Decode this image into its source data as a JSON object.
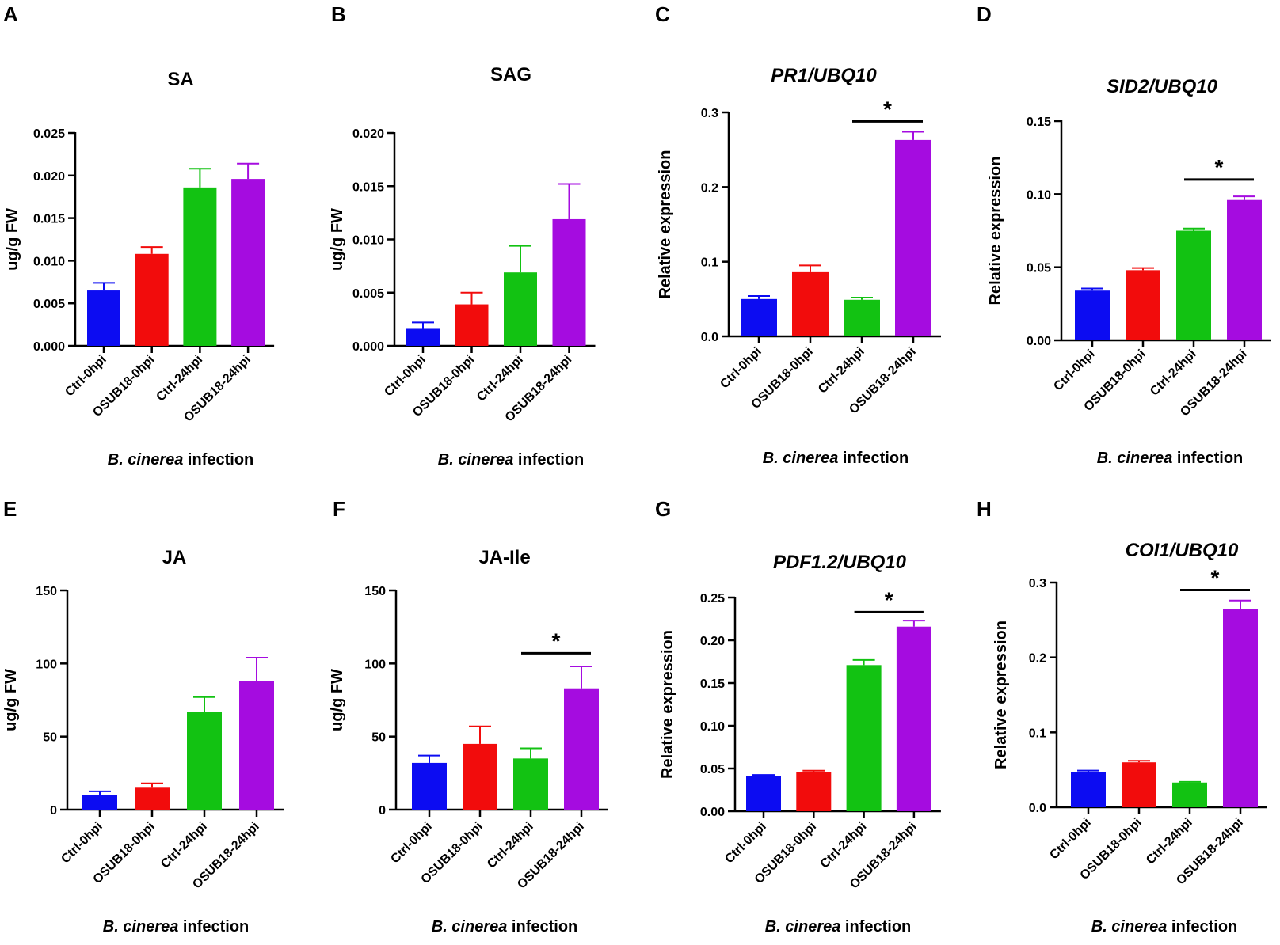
{
  "colors": {
    "ctrl0": "#0c0cf2",
    "osub0": "#f20c0c",
    "ctrl24": "#12c212",
    "osub24": "#a50ce0"
  },
  "chart_data": [
    {
      "panel": "A",
      "type": "bar",
      "title": "SA",
      "title_italic": false,
      "ylabel": "ug/g FW",
      "xlabel_italic": "B. cinerea",
      "xlabel_rest": " infection",
      "categories": [
        "Ctrl-0hpi",
        "OSUB18-0hpi",
        "Ctrl-24hpi",
        "OSUB18-24hpi"
      ],
      "values": [
        0.0065,
        0.0108,
        0.0186,
        0.0196
      ],
      "errors": [
        0.0009,
        0.0008,
        0.0022,
        0.0018
      ],
      "ylim": [
        0,
        0.025
      ],
      "yticks": [
        "0.000",
        "0.005",
        "0.010",
        "0.015",
        "0.020",
        "0.025"
      ],
      "significance": null
    },
    {
      "panel": "B",
      "type": "bar",
      "title": "SAG",
      "title_italic": false,
      "ylabel": "ug/g FW",
      "xlabel_italic": "B. cinerea",
      "xlabel_rest": " infection",
      "categories": [
        "Ctrl-0hpi",
        "OSUB18-0hpi",
        "Ctrl-24hpi",
        "OSUB18-24hpi"
      ],
      "values": [
        0.0016,
        0.0039,
        0.0069,
        0.0119
      ],
      "errors": [
        0.0006,
        0.0011,
        0.0025,
        0.0033
      ],
      "ylim": [
        0,
        0.02
      ],
      "yticks": [
        "0.000",
        "0.005",
        "0.010",
        "0.015",
        "0.020"
      ],
      "significance": null
    },
    {
      "panel": "C",
      "type": "bar",
      "title": "PR1/UBQ10",
      "title_italic": true,
      "ylabel": "Relative expression",
      "xlabel_italic": "B. cinerea",
      "xlabel_rest": " infection",
      "categories": [
        "Ctrl-0hpi",
        "OSUB18-0hpi",
        "Ctrl-24hpi",
        "OSUB18-24hpi"
      ],
      "values": [
        0.05,
        0.086,
        0.049,
        0.263
      ],
      "errors": [
        0.004,
        0.009,
        0.003,
        0.011
      ],
      "ylim": [
        0,
        0.3
      ],
      "yticks": [
        "0.0",
        "0.1",
        "0.2",
        "0.3"
      ],
      "significance": {
        "from": 2,
        "to": 3,
        "label": "*",
        "y": 0.288
      }
    },
    {
      "panel": "D",
      "type": "bar",
      "title": "SID2/UBQ10",
      "title_italic": true,
      "ylabel": "Relative expression",
      "xlabel_italic": "B. cinerea",
      "xlabel_rest": " infection",
      "categories": [
        "Ctrl-0hpi",
        "OSUB18-0hpi",
        "Ctrl-24hpi",
        "OSUB18-24hpi"
      ],
      "values": [
        0.034,
        0.048,
        0.075,
        0.096
      ],
      "errors": [
        0.0015,
        0.0015,
        0.0015,
        0.0025
      ],
      "ylim": [
        0,
        0.15
      ],
      "yticks": [
        "0.00",
        "0.05",
        "0.10",
        "0.15"
      ],
      "significance": {
        "from": 2,
        "to": 3,
        "label": "*",
        "y": 0.11
      }
    },
    {
      "panel": "E",
      "type": "bar",
      "title": "JA",
      "title_italic": false,
      "ylabel": "ug/g FW",
      "xlabel_italic": "B. cinerea",
      "xlabel_rest": " infection",
      "categories": [
        "Ctrl-0hpi",
        "OSUB18-0hpi",
        "Ctrl-24hpi",
        "OSUB18-24hpi"
      ],
      "values": [
        10,
        15,
        67,
        88
      ],
      "errors": [
        2.5,
        3,
        10,
        16
      ],
      "ylim": [
        0,
        150
      ],
      "yticks": [
        "0",
        "50",
        "100",
        "150"
      ],
      "significance": null
    },
    {
      "panel": "F",
      "type": "bar",
      "title": "JA-Ile",
      "title_italic": false,
      "ylabel": "ug/g FW",
      "xlabel_italic": "B. cinerea",
      "xlabel_rest": " infection",
      "categories": [
        "Ctrl-0hpi",
        "OSUB18-0hpi",
        "Ctrl-24hpi",
        "OSUB18-24hpi"
      ],
      "values": [
        32,
        45,
        35,
        83
      ],
      "errors": [
        5,
        12,
        7,
        15
      ],
      "ylim": [
        0,
        150
      ],
      "yticks": [
        "0",
        "50",
        "100",
        "150"
      ],
      "significance": {
        "from": 2,
        "to": 3,
        "label": "*",
        "y": 107
      }
    },
    {
      "panel": "G",
      "type": "bar",
      "title": "PDF1.2/UBQ10",
      "title_italic": true,
      "ylabel": "Relative expression",
      "xlabel_italic": "B. cinerea",
      "xlabel_rest": " infection",
      "categories": [
        "Ctrl-0hpi",
        "OSUB18-0hpi",
        "Ctrl-24hpi",
        "OSUB18-24hpi"
      ],
      "values": [
        0.041,
        0.046,
        0.171,
        0.216
      ],
      "errors": [
        0.0015,
        0.0015,
        0.006,
        0.007
      ],
      "ylim": [
        0,
        0.25
      ],
      "yticks": [
        "0.00",
        "0.05",
        "0.10",
        "0.15",
        "0.20",
        "0.25"
      ],
      "significance": {
        "from": 2,
        "to": 3,
        "label": "*",
        "y": 0.233
      }
    },
    {
      "panel": "H",
      "type": "bar",
      "title": "COI1/UBQ10",
      "title_italic": true,
      "ylabel": "Relative expression",
      "xlabel_italic": "B. cinerea",
      "xlabel_rest": " infection",
      "categories": [
        "Ctrl-0hpi",
        "OSUB18-0hpi",
        "Ctrl-24hpi",
        "OSUB18-24hpi"
      ],
      "values": [
        0.047,
        0.06,
        0.033,
        0.265
      ],
      "errors": [
        0.002,
        0.002,
        0.001,
        0.011
      ],
      "ylim": [
        0,
        0.3
      ],
      "yticks": [
        "0.0",
        "0.1",
        "0.2",
        "0.3"
      ],
      "significance": {
        "from": 2,
        "to": 3,
        "label": "*",
        "y": 0.29
      }
    }
  ]
}
